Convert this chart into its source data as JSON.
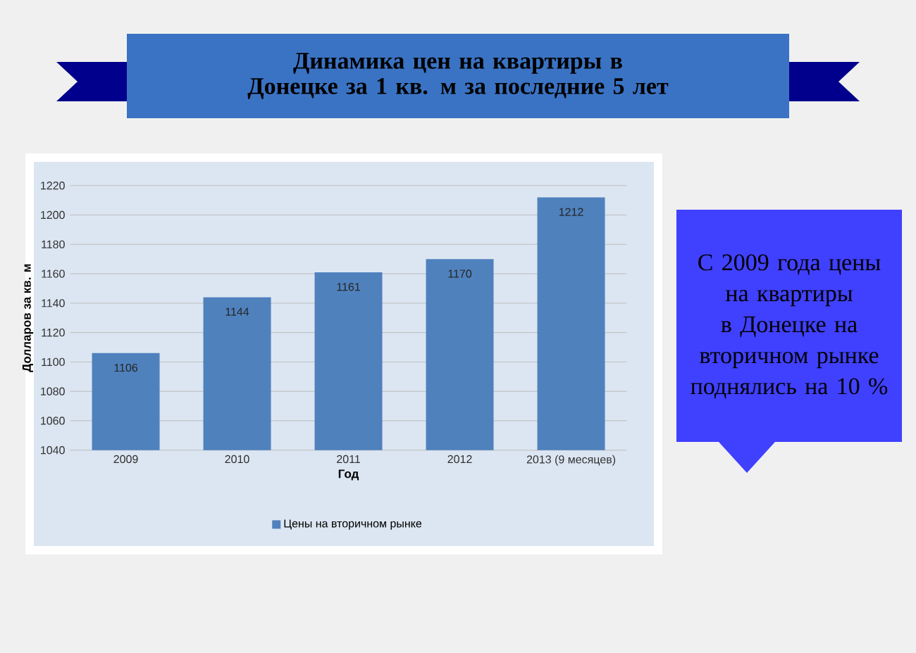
{
  "chart_data": {
    "type": "bar",
    "title": "Динамика цен на квартиры в Донецке за 1 кв. м за последние 5 лет",
    "xlabel": "Год",
    "ylabel": "Долларов за кв. м",
    "categories": [
      "2009",
      "2010",
      "2011",
      "2012",
      "2013 (9 месяцев)"
    ],
    "series": [
      {
        "name": "Цены на вторичном рынке",
        "color": "#4f81bd",
        "values": [
          1106,
          1144,
          1161,
          1170,
          1212
        ]
      }
    ],
    "ylim": [
      1040,
      1220
    ],
    "yticks": [
      1040,
      1060,
      1080,
      1100,
      1120,
      1140,
      1160,
      1180,
      1200,
      1220
    ],
    "grid": "y",
    "legend": "bottom",
    "data_labels": true,
    "annotations": [
      "С 2009 года цены на квартиры в Донецке на вторичном рынке поднялись на 10 %"
    ]
  }
}
